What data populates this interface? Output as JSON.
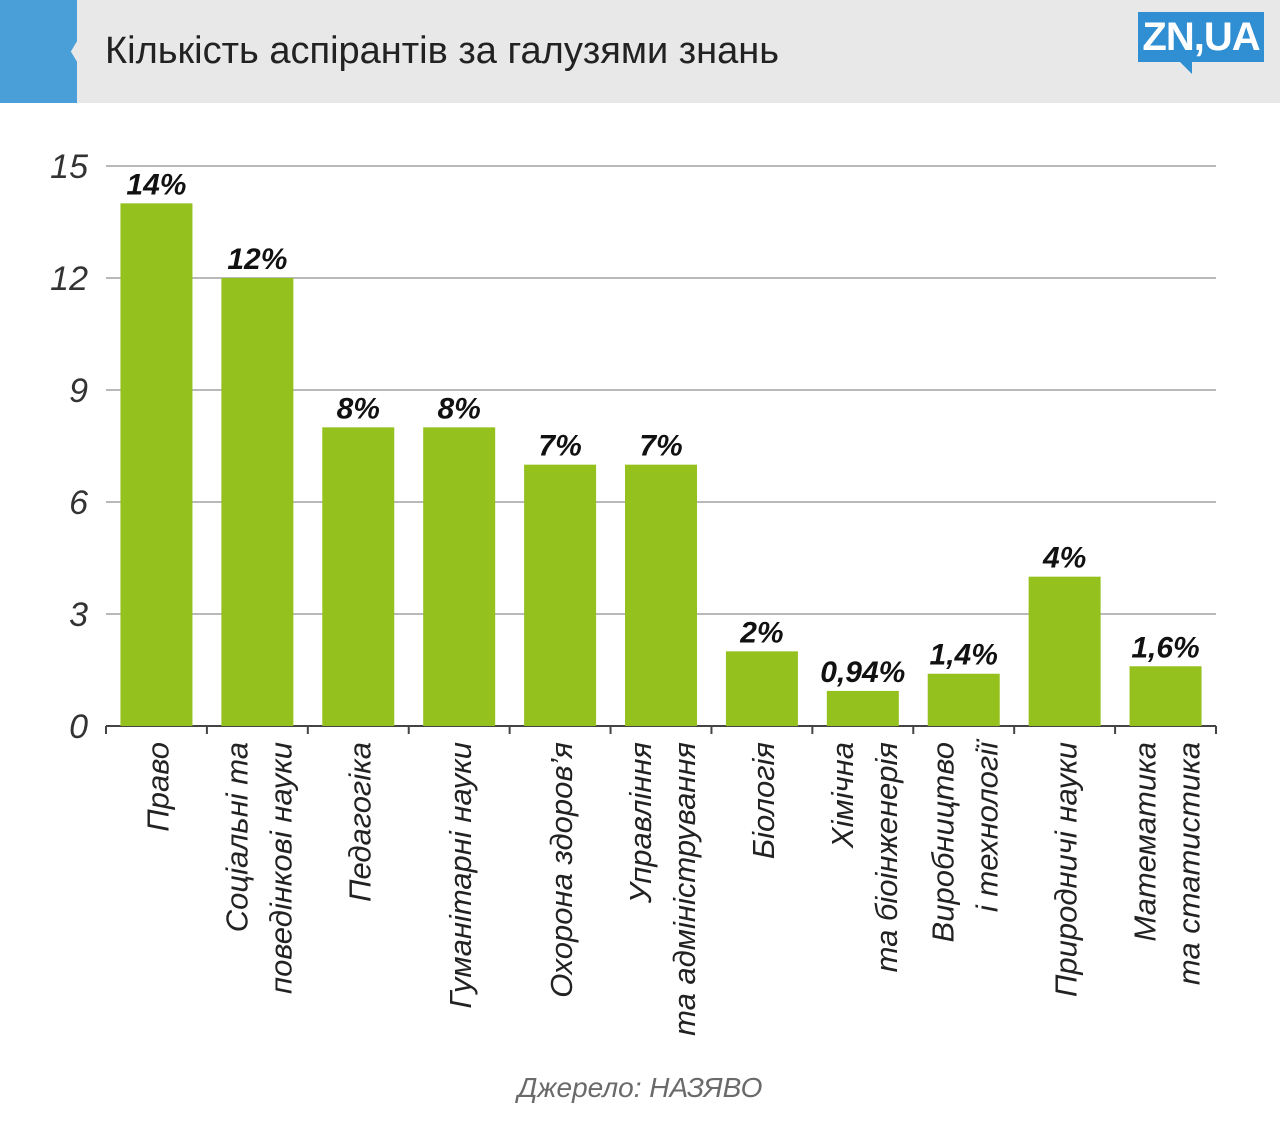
{
  "header": {
    "title": "Кількість аспірантів за галузями знань",
    "logo_text": "ZN,UA"
  },
  "source": "Джерело: НАЗЯВО",
  "colors": {
    "bar": "#95c11f",
    "grid": "#b9b9b9",
    "accent": "#4a9fd8",
    "logo": "#2f8fd2"
  },
  "chart_data": {
    "type": "bar",
    "ylim": [
      0,
      15
    ],
    "yticks": [
      "0",
      "3",
      "6",
      "9",
      "12",
      "15"
    ],
    "grid": true,
    "categories": [
      [
        "Право"
      ],
      [
        "Соціальні та",
        "поведінкові науки"
      ],
      [
        "Педагогіка"
      ],
      [
        "Гуманітарні науки"
      ],
      [
        "Охорона здоров’я"
      ],
      [
        "Управління",
        "та адміністрування"
      ],
      [
        "Біологія"
      ],
      [
        "Хімічна",
        "та біоінженерія"
      ],
      [
        "Виробництво",
        "і технології"
      ],
      [
        "Природничі науки"
      ],
      [
        "Математика",
        "та статистика"
      ]
    ],
    "values": [
      14,
      12,
      8,
      8,
      7,
      7,
      2,
      0.94,
      1.4,
      4,
      1.6
    ],
    "data_labels": [
      "14%",
      "12%",
      "8%",
      "8%",
      "7%",
      "7%",
      "2%",
      "0,94%",
      "1,4%",
      "4%",
      "1,6%"
    ]
  }
}
